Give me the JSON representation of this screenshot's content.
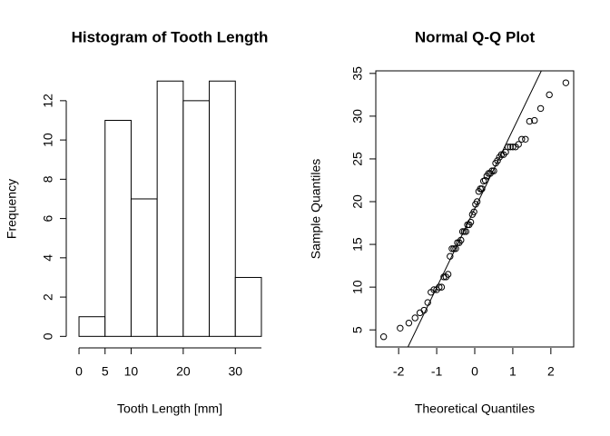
{
  "chart_data": [
    {
      "type": "histogram",
      "title": "Histogram of Tooth Length",
      "x_label": "Tooth Length [mm]",
      "y_label": "Frequency",
      "bins": [
        0,
        5,
        10,
        15,
        20,
        25,
        30,
        35
      ],
      "values": [
        1,
        11,
        7,
        13,
        12,
        13,
        3
      ],
      "xlim": [
        -1.4,
        36.4
      ],
      "xticks": [
        0,
        5,
        10,
        20,
        30
      ],
      "ylim": [
        -0.54,
        13.52
      ],
      "yticks": [
        0,
        2,
        4,
        6,
        8,
        10,
        12
      ],
      "color": "#ffffff"
    },
    {
      "type": "scatter",
      "title": "Normal Q-Q Plot",
      "x_label": "Theoretical Quantiles",
      "y_label": "Sample Quantiles",
      "x": [
        -2.394,
        -1.96,
        -1.732,
        -1.569,
        -1.44,
        -1.331,
        -1.235,
        -1.15,
        -1.073,
        -1.001,
        -0.935,
        -0.872,
        -0.812,
        -0.755,
        -0.701,
        -0.649,
        -0.598,
        -0.549,
        -0.501,
        -0.454,
        -0.408,
        -0.363,
        -0.319,
        -0.276,
        -0.232,
        -0.189,
        -0.147,
        -0.105,
        -0.063,
        -0.021,
        0.021,
        0.063,
        0.105,
        0.147,
        0.189,
        0.232,
        0.276,
        0.319,
        0.363,
        0.408,
        0.454,
        0.501,
        0.549,
        0.598,
        0.649,
        0.701,
        0.755,
        0.812,
        0.872,
        0.935,
        1.001,
        1.073,
        1.15,
        1.235,
        1.331,
        1.44,
        1.569,
        1.732,
        1.96,
        2.394
      ],
      "values": [
        4.2,
        5.2,
        5.8,
        6.4,
        7.0,
        7.3,
        8.2,
        9.4,
        9.7,
        9.7,
        10.0,
        10.0,
        11.2,
        11.2,
        11.5,
        13.6,
        14.5,
        14.5,
        14.5,
        15.2,
        15.2,
        15.5,
        16.5,
        16.5,
        16.5,
        17.3,
        17.3,
        17.6,
        18.5,
        18.8,
        19.7,
        20.0,
        21.2,
        21.5,
        21.5,
        22.4,
        22.5,
        23.0,
        23.3,
        23.3,
        23.6,
        23.6,
        24.5,
        24.8,
        25.2,
        25.5,
        25.5,
        25.8,
        26.4,
        26.4,
        26.4,
        26.4,
        26.7,
        27.3,
        27.3,
        29.4,
        29.5,
        30.9,
        32.5,
        33.9
      ],
      "xlim": [
        -2.6,
        2.6
      ],
      "xticks": [
        -2,
        -1,
        0,
        1,
        2
      ],
      "ylim": [
        3.0,
        35.3
      ],
      "yticks": [
        5,
        10,
        15,
        20,
        25,
        30,
        35
      ],
      "qq_line": true,
      "color": "#000000"
    }
  ]
}
